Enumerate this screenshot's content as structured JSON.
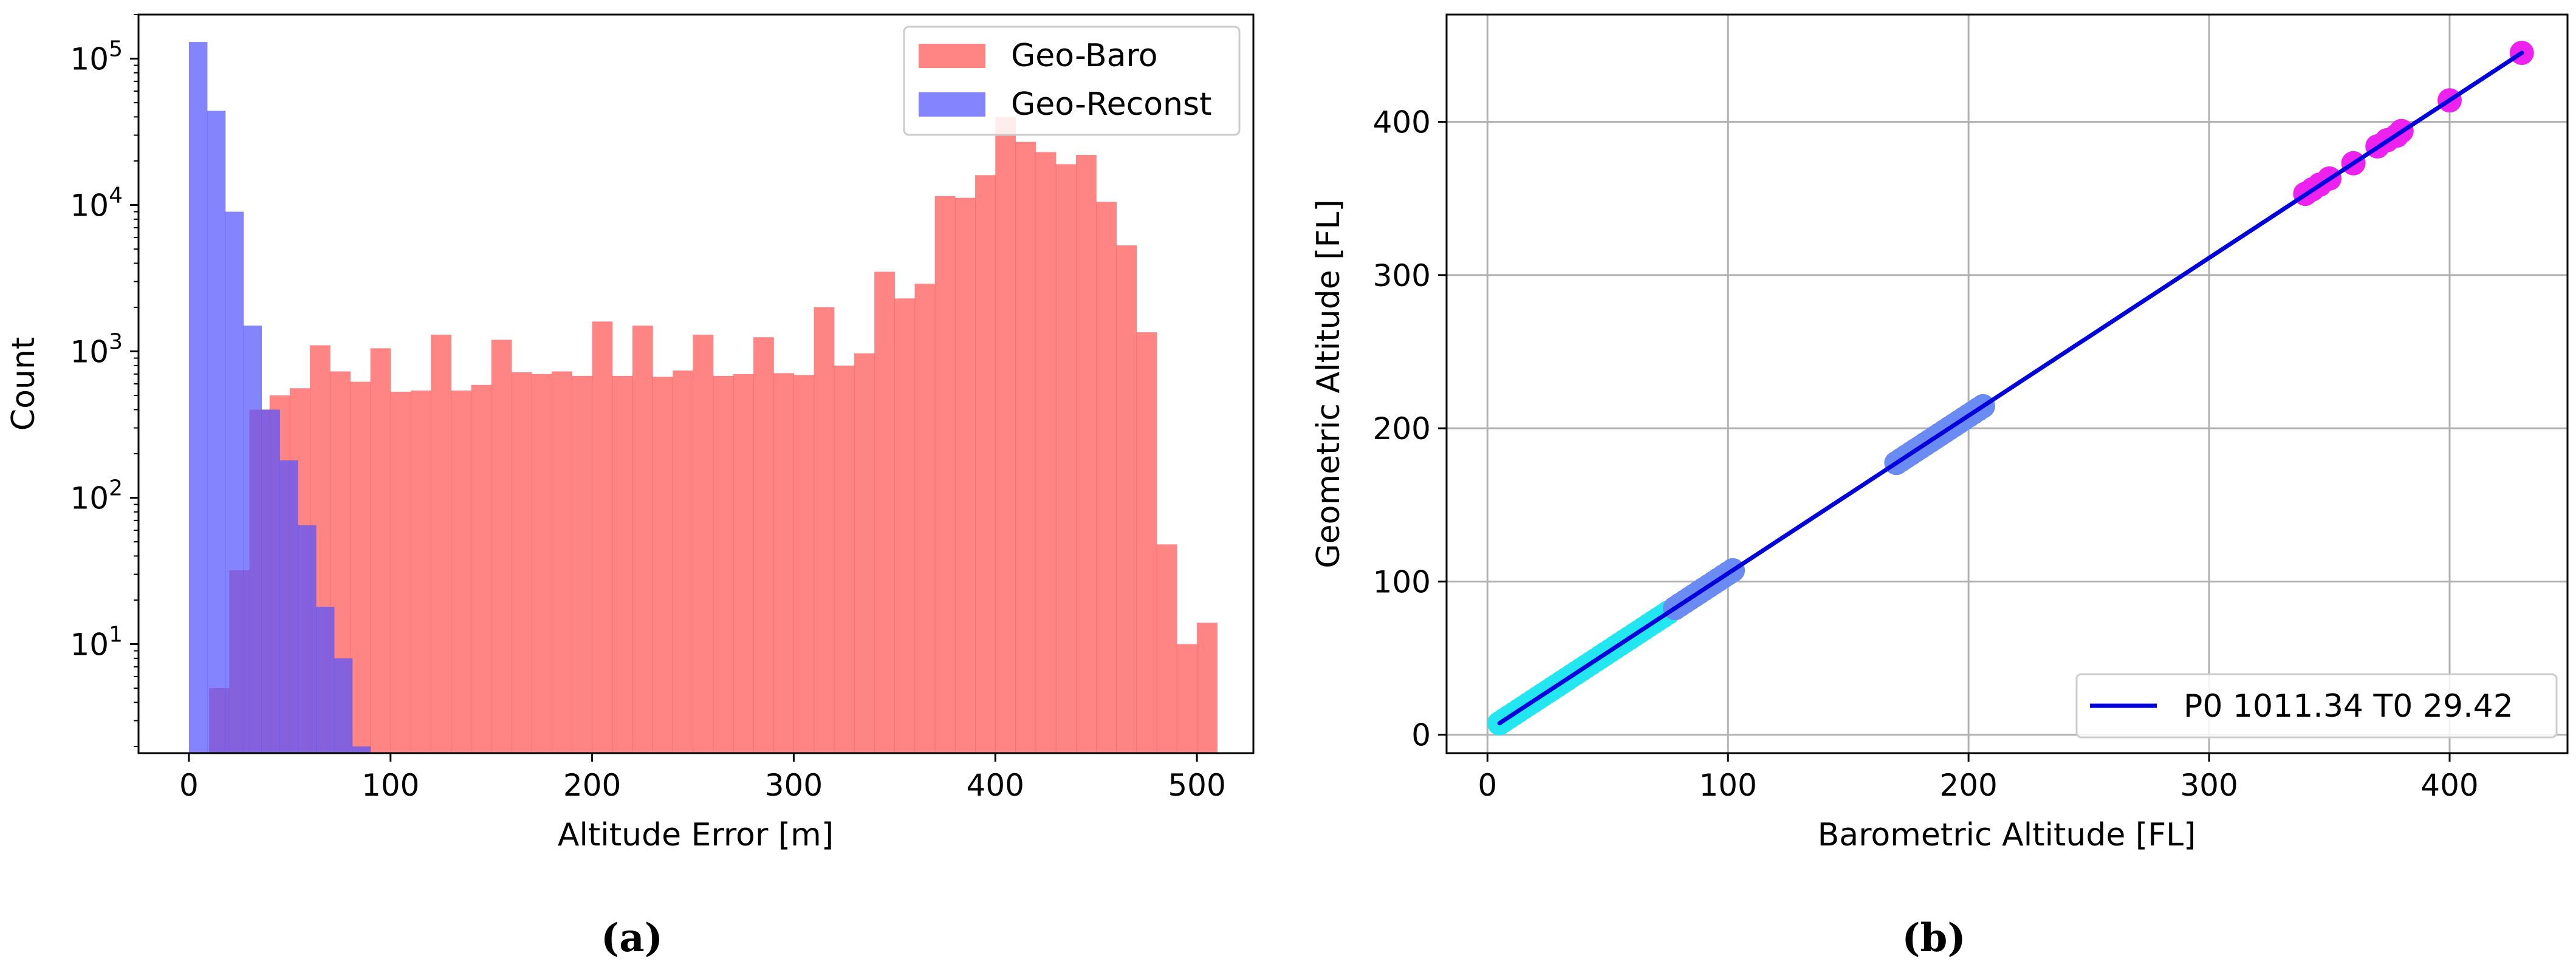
{
  "colors": {
    "geo_baro": "#ff5555",
    "geo_reconst": "#5555ff",
    "axis": "#000000",
    "grid": "#b0b0b0",
    "fit_line": "#0000dd",
    "scatter_low": "#22e6f0",
    "scatter_mid": "#6a8cf2",
    "scatter_high": "#ee22ee"
  },
  "panel_a": {
    "caption": "(a)",
    "chart_data": {
      "type": "bar",
      "xlabel": "Altitude Error [m]",
      "ylabel": "Count",
      "xlim": [
        -25,
        528
      ],
      "ylim": [
        1.8,
        200000
      ],
      "yscale": "log",
      "xticks": [
        0,
        100,
        200,
        300,
        400,
        500
      ],
      "yticks": [
        {
          "value": 10,
          "base": "10",
          "exp": "1"
        },
        {
          "value": 100,
          "base": "10",
          "exp": "2"
        },
        {
          "value": 1000,
          "base": "10",
          "exp": "3"
        },
        {
          "value": 10000,
          "base": "10",
          "exp": "4"
        },
        {
          "value": 100000,
          "base": "10",
          "exp": "5"
        }
      ],
      "legend_position": "top-right",
      "grid": false,
      "series": [
        {
          "name": "Geo-Baro",
          "color": "#ff5555",
          "alpha": 0.72,
          "bin_start": 10,
          "bin_width": 10,
          "values": [
            5,
            32,
            400,
            500,
            560,
            1100,
            730,
            620,
            1050,
            530,
            540,
            1300,
            540,
            590,
            1200,
            720,
            700,
            730,
            680,
            1600,
            680,
            1500,
            670,
            740,
            1300,
            680,
            700,
            1250,
            710,
            690,
            2000,
            800,
            970,
            3500,
            2300,
            2900,
            11500,
            11200,
            16000,
            40000,
            27000,
            23000,
            19000,
            22000,
            10500,
            5300,
            1350,
            48,
            10,
            14
          ]
        },
        {
          "name": "Geo-Reconst",
          "color": "#5555ff",
          "alpha": 0.72,
          "bin_start": 0,
          "bin_width": 9,
          "values": [
            130000,
            44000,
            9000,
            1500,
            400,
            180,
            65,
            18,
            8,
            2
          ]
        }
      ]
    }
  },
  "panel_b": {
    "caption": "(b)",
    "chart_data": {
      "type": "scatter",
      "xlabel": "Barometric Altitude [FL]",
      "ylabel": "Geometric Altitude [FL]",
      "xlim": [
        -17,
        449
      ],
      "ylim": [
        -12,
        470
      ],
      "xticks": [
        0,
        100,
        200,
        300,
        400
      ],
      "yticks": [
        0,
        100,
        200,
        300,
        400
      ],
      "grid": true,
      "legend_position": "bottom-right",
      "fit_line": {
        "label": "P0 1011.34 T0 29.42",
        "color": "#0000dd",
        "x": [
          5,
          430
        ],
        "y": [
          7.5,
          445
        ]
      },
      "scatter_segments": [
        {
          "color": "#22e6f0",
          "x_start": 5,
          "x_end": 75,
          "step": 2
        },
        {
          "color": "#6a8cf2",
          "x_start": 78,
          "x_end": 103,
          "step": 2
        },
        {
          "color": "#6a8cf2",
          "x_start": 170,
          "x_end": 206,
          "step": 2
        }
      ],
      "scatter_points": {
        "color": "#ee22ee",
        "x": [
          340,
          343,
          346,
          350,
          360,
          370,
          374,
          378,
          380,
          400,
          430
        ],
        "y": [
          353,
          356,
          359,
          363,
          373,
          384,
          388,
          391,
          394,
          414,
          445
        ]
      }
    }
  }
}
